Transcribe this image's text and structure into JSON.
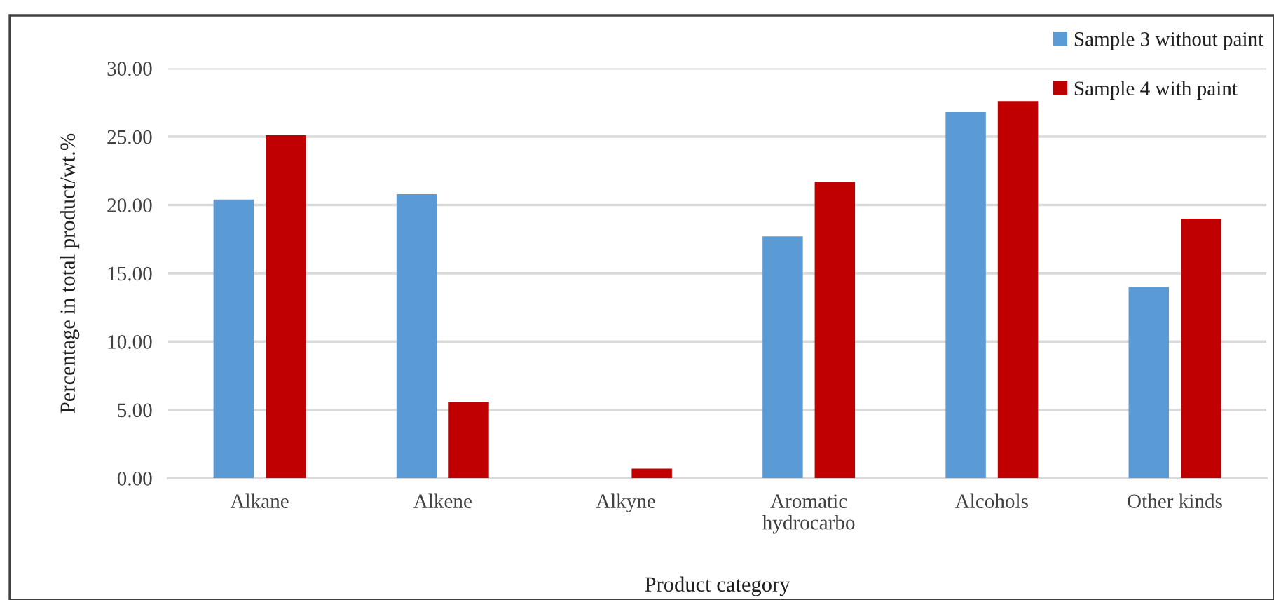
{
  "chart_data": {
    "type": "bar",
    "xlabel": "Product category",
    "ylabel": "Percentage in total product/wt.%",
    "categories": [
      "Alkane",
      "Alkene",
      "Alkyne",
      "Aromatic\nhydrocarbo",
      "Alcohols",
      "Other kinds"
    ],
    "series": [
      {
        "name": "Sample 3 without paint",
        "color": "#5b9bd5",
        "values": [
          20.4,
          20.8,
          null,
          17.7,
          26.8,
          14.0
        ]
      },
      {
        "name": "Sample 4 with paint",
        "color": "#c00000",
        "values": [
          25.1,
          5.6,
          0.7,
          21.7,
          27.6,
          19.0
        ]
      }
    ],
    "ylim": [
      0,
      30
    ],
    "yticks": [
      {
        "value": 0,
        "label": "0.00"
      },
      {
        "value": 5,
        "label": "5.00"
      },
      {
        "value": 10,
        "label": "10.00"
      },
      {
        "value": 15,
        "label": "15.00"
      },
      {
        "value": 20,
        "label": "20.00"
      },
      {
        "value": 25,
        "label": "25.00"
      },
      {
        "value": 30,
        "label": "30.00"
      }
    ],
    "grid": "y",
    "legend": "top right"
  }
}
